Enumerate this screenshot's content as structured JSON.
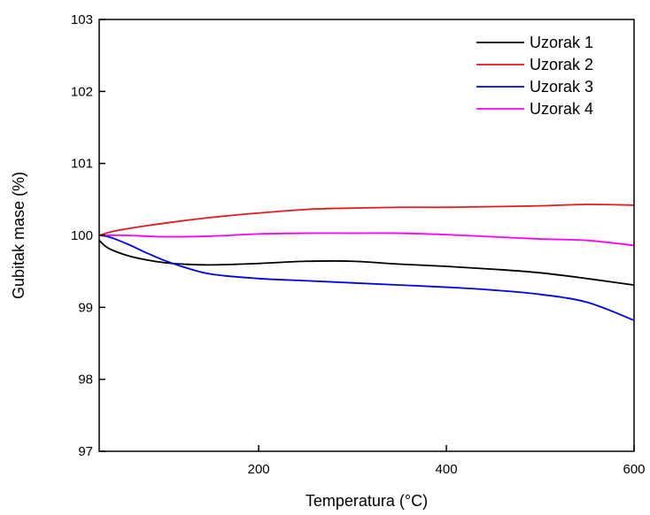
{
  "chart_data": {
    "type": "line",
    "title": "",
    "xlabel": "Temperatura (°C)",
    "ylabel": "Gubitak mase (%)",
    "xlim": [
      30,
      600
    ],
    "ylim": [
      97,
      103
    ],
    "xticks": [
      200,
      400,
      600
    ],
    "yticks": [
      97,
      98,
      99,
      100,
      101,
      102,
      103
    ],
    "grid": false,
    "legend_position": "top-right",
    "series": [
      {
        "name": "Uzorak 1",
        "color": "#000000",
        "x": [
          30,
          40,
          60,
          80,
          100,
          120,
          150,
          200,
          250,
          300,
          350,
          400,
          450,
          500,
          550,
          600
        ],
        "y": [
          99.93,
          99.82,
          99.72,
          99.66,
          99.62,
          99.6,
          99.59,
          99.61,
          99.64,
          99.64,
          99.6,
          99.57,
          99.53,
          99.48,
          99.4,
          99.31
        ]
      },
      {
        "name": "Uzorak 2",
        "color": "#e41a1c",
        "x": [
          30,
          50,
          100,
          150,
          200,
          250,
          300,
          350,
          400,
          450,
          500,
          550,
          600
        ],
        "y": [
          100.0,
          100.07,
          100.17,
          100.25,
          100.31,
          100.36,
          100.38,
          100.39,
          100.39,
          100.4,
          100.41,
          100.43,
          100.42
        ]
      },
      {
        "name": "Uzorak 3",
        "color": "#0000ee",
        "x": [
          30,
          40,
          60,
          80,
          100,
          120,
          150,
          200,
          250,
          300,
          350,
          400,
          450,
          500,
          550,
          600
        ],
        "y": [
          100.0,
          99.98,
          99.88,
          99.76,
          99.65,
          99.56,
          99.46,
          99.4,
          99.37,
          99.34,
          99.31,
          99.28,
          99.24,
          99.18,
          99.07,
          98.82
        ]
      },
      {
        "name": "Uzorak 4",
        "color": "#ff00ff",
        "x": [
          30,
          60,
          100,
          150,
          200,
          250,
          300,
          350,
          400,
          450,
          500,
          550,
          600
        ],
        "y": [
          100.0,
          100.0,
          99.98,
          99.99,
          100.02,
          100.03,
          100.03,
          100.03,
          100.01,
          99.98,
          99.95,
          99.93,
          99.86
        ]
      }
    ]
  }
}
